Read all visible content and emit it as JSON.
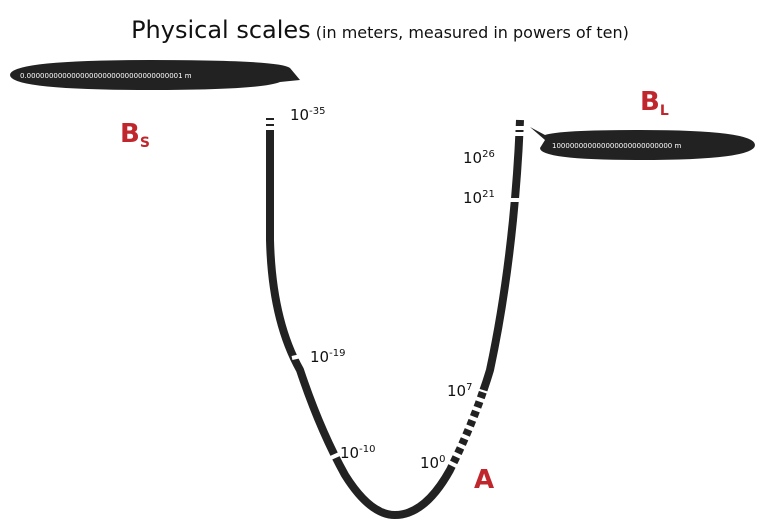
{
  "title": "Physical scales",
  "subtitle": "(in meters, measured in powers of ten)",
  "bubbles": [
    {
      "text": "0.00000000000000000000000000000000001 m"
    },
    {
      "text": "100000000000000000000000000 m"
    }
  ],
  "labels": [
    {
      "base": "10",
      "exp": "-35"
    },
    {
      "base": "10",
      "exp": "26"
    },
    {
      "base": "10",
      "exp": "21"
    },
    {
      "base": "10",
      "exp": "-19"
    },
    {
      "base": "10",
      "exp": "7"
    },
    {
      "base": "10",
      "exp": "-10"
    },
    {
      "base": "10",
      "exp": "0"
    }
  ],
  "points": [
    {
      "letter": "B",
      "sub": "S"
    },
    {
      "letter": "B",
      "sub": "L"
    },
    {
      "letter": "A"
    }
  ]
}
